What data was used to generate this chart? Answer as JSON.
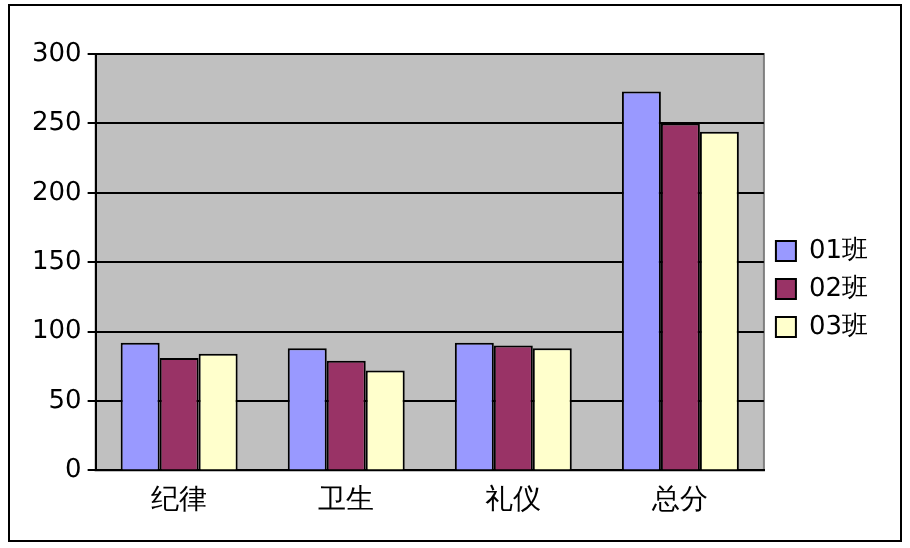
{
  "chart_data": {
    "type": "bar",
    "categories": [
      "纪律",
      "卫生",
      "礼仪",
      "总分"
    ],
    "series": [
      {
        "name": "01班",
        "color": "#9999ff",
        "values": [
          92,
          88,
          92,
          273
        ]
      },
      {
        "name": "02班",
        "color": "#993366",
        "values": [
          81,
          79,
          90,
          250
        ]
      },
      {
        "name": "03班",
        "color": "#ffffcc",
        "values": [
          84,
          72,
          88,
          244
        ]
      }
    ],
    "ylim": [
      0,
      300
    ],
    "yticks": [
      0,
      50,
      100,
      150,
      200,
      250,
      300
    ],
    "grid": "y",
    "legend": "right"
  }
}
